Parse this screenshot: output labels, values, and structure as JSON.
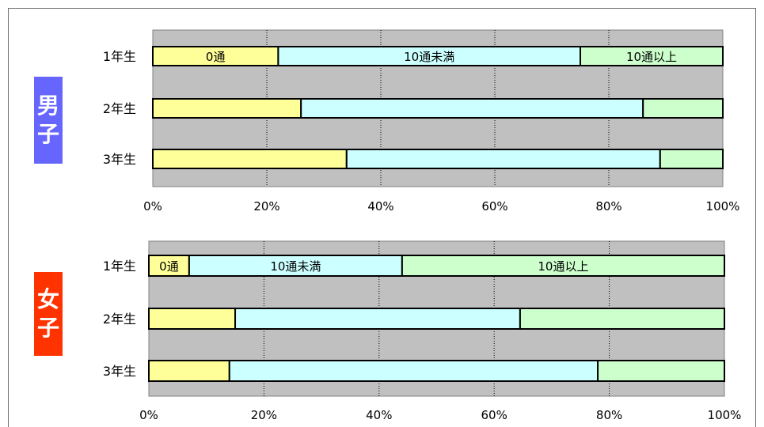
{
  "colors": {
    "plot_bg": "#c0c0c0",
    "zero": "#ffff99",
    "under10": "#ccffff",
    "over10": "#ccffcc",
    "boys_badge": "#6666ff",
    "girls_badge": "#ff3300"
  },
  "panels": {
    "boys": {
      "badge": [
        "男",
        "子"
      ]
    },
    "girls": {
      "badge": [
        "女",
        "子"
      ]
    }
  },
  "chart_data": [
    {
      "type": "bar",
      "orientation": "horizontal",
      "stacked": true,
      "percent_scale": true,
      "group": "男子",
      "categories": [
        "1年生",
        "2年生",
        "3年生"
      ],
      "series": [
        {
          "name": "0通",
          "values": [
            22,
            26,
            34
          ],
          "color": "#ffff99"
        },
        {
          "name": "10通未満",
          "values": [
            53,
            60,
            55
          ],
          "color": "#ccffff"
        },
        {
          "name": "10通以上",
          "values": [
            25,
            14,
            11
          ],
          "color": "#ccffcc"
        }
      ],
      "xlim": [
        0,
        100
      ],
      "xticks": [
        "0%",
        "20%",
        "40%",
        "60%",
        "80%",
        "100%"
      ],
      "grid": "vertical dotted",
      "legend": "in-bar labels on first row"
    },
    {
      "type": "bar",
      "orientation": "horizontal",
      "stacked": true,
      "percent_scale": true,
      "group": "女子",
      "categories": [
        "1年生",
        "2年生",
        "3年生"
      ],
      "series": [
        {
          "name": "0通",
          "values": [
            7,
            15,
            14
          ],
          "color": "#ffff99"
        },
        {
          "name": "10通未満",
          "values": [
            37,
            49.5,
            64
          ],
          "color": "#ccffff"
        },
        {
          "name": "10通以上",
          "values": [
            56,
            35.5,
            22
          ],
          "color": "#ccffcc"
        }
      ],
      "xlim": [
        0,
        100
      ],
      "xticks": [
        "0%",
        "20%",
        "40%",
        "60%",
        "80%",
        "100%"
      ],
      "grid": "vertical dotted",
      "legend": "in-bar labels on first row"
    }
  ]
}
